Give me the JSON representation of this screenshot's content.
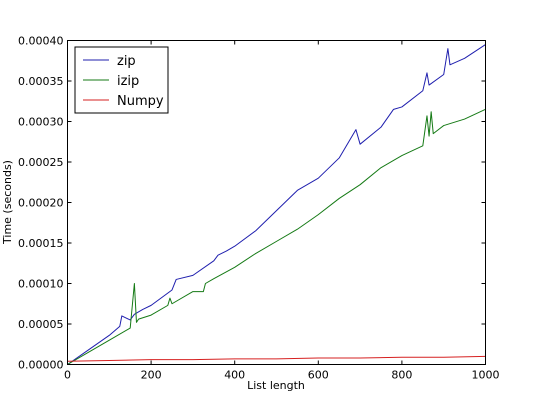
{
  "chart_data": {
    "type": "line",
    "title": "",
    "xlabel": "List length",
    "ylabel": "Time (seconds)",
    "xlim": [
      0,
      1000
    ],
    "ylim": [
      0,
      0.0004
    ],
    "xticks": [
      0,
      200,
      400,
      600,
      800,
      1000
    ],
    "xtick_labels": [
      "0",
      "200",
      "400",
      "600",
      "800",
      "1000"
    ],
    "yticks": [
      0,
      5e-05,
      0.0001,
      0.00015,
      0.0002,
      0.00025,
      0.0003,
      0.00035,
      0.0004
    ],
    "ytick_labels": [
      "0.00000",
      "0.00005",
      "0.00010",
      "0.00015",
      "0.00020",
      "0.00025",
      "0.00030",
      "0.00035",
      "0.00040"
    ],
    "grid": false,
    "legend_position": "top-left",
    "series": [
      {
        "name": "zip",
        "color": "#1f1fae",
        "x": [
          0,
          50,
          100,
          125,
          130,
          150,
          160,
          180,
          200,
          250,
          260,
          300,
          350,
          360,
          380,
          400,
          450,
          500,
          550,
          600,
          650,
          690,
          700,
          750,
          780,
          800,
          850,
          860,
          865,
          900,
          910,
          915,
          950,
          1000
        ],
        "y": [
          0.0,
          1.8e-05,
          3.6e-05,
          4.7e-05,
          6e-05,
          5.5e-05,
          6.2e-05,
          6.8e-05,
          7.3e-05,
          9.2e-05,
          0.000105,
          0.00011,
          0.000128,
          0.000135,
          0.00014,
          0.000146,
          0.000165,
          0.00019,
          0.000215,
          0.00023,
          0.000255,
          0.00029,
          0.000272,
          0.000293,
          0.000315,
          0.000318,
          0.000338,
          0.00036,
          0.000345,
          0.000358,
          0.00039,
          0.00037,
          0.000378,
          0.000395
        ]
      },
      {
        "name": "izip",
        "color": "#157a15",
        "x": [
          0,
          50,
          100,
          150,
          160,
          165,
          170,
          200,
          240,
          245,
          250,
          300,
          325,
          330,
          350,
          400,
          450,
          500,
          550,
          600,
          650,
          700,
          750,
          800,
          850,
          860,
          865,
          870,
          875,
          900,
          950,
          1000
        ],
        "y": [
          0.0,
          1.5e-05,
          3e-05,
          4.5e-05,
          0.0001,
          5.2e-05,
          5.6e-05,
          6.1e-05,
          7.3e-05,
          8.2e-05,
          7.5e-05,
          9e-05,
          9e-05,
          0.0001,
          0.000106,
          0.00012,
          0.000137,
          0.000152,
          0.000167,
          0.000185,
          0.000205,
          0.000222,
          0.000243,
          0.000258,
          0.00027,
          0.000307,
          0.000282,
          0.000312,
          0.000285,
          0.000295,
          0.000303,
          0.000315
        ]
      },
      {
        "name": "Numpy",
        "color": "#d62020",
        "x": [
          0,
          100,
          200,
          300,
          400,
          500,
          600,
          700,
          800,
          900,
          1000
        ],
        "y": [
          4e-06,
          5e-06,
          6e-06,
          6e-06,
          7e-06,
          7e-06,
          8e-06,
          8e-06,
          9e-06,
          9e-06,
          1e-05
        ]
      }
    ]
  }
}
